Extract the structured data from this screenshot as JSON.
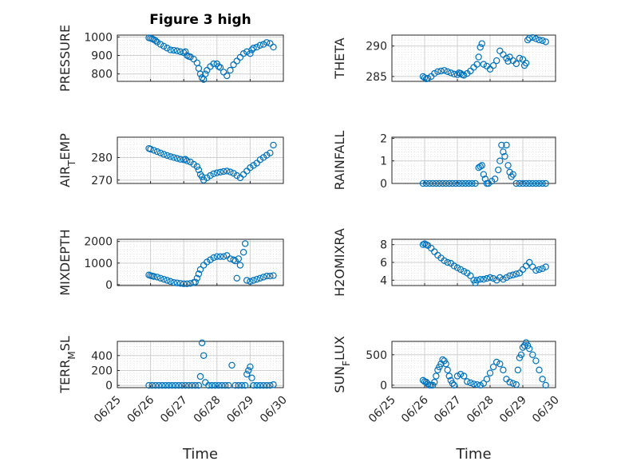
{
  "figure": {
    "title": "Figure 3 high",
    "marker_color": "#0072bd"
  },
  "chart_data": [
    {
      "type": "scatter",
      "ylabel": "PRESSURE",
      "ylim": [
        760,
        1010
      ],
      "yticks": [
        800,
        900,
        1000
      ],
      "x_label_shown": false,
      "x": [
        0.95,
        1.0,
        1.05,
        1.1,
        1.15,
        1.2,
        1.3,
        1.4,
        1.5,
        1.6,
        1.7,
        1.8,
        1.9,
        2.0,
        2.05,
        2.1,
        2.15,
        2.2,
        2.3,
        2.4,
        2.45,
        2.5,
        2.55,
        2.6,
        2.65,
        2.7,
        2.8,
        2.9,
        3.0,
        3.05,
        3.1,
        3.2,
        3.3,
        3.4,
        3.5,
        3.6,
        3.7,
        3.8,
        3.9,
        4.0,
        4.05,
        4.1,
        4.2,
        4.3,
        4.4,
        4.5,
        4.6,
        4.7
      ],
      "y": [
        995,
        993,
        990,
        985,
        980,
        972,
        960,
        950,
        940,
        930,
        928,
        925,
        920,
        915,
        920,
        900,
        895,
        892,
        880,
        860,
        830,
        800,
        780,
        770,
        800,
        820,
        840,
        855,
        855,
        840,
        835,
        810,
        790,
        820,
        850,
        870,
        890,
        910,
        920,
        910,
        930,
        940,
        945,
        955,
        960,
        970,
        965,
        945
      ]
    },
    {
      "type": "scatter",
      "ylabel": "THETA",
      "ylim": [
        284.2,
        291.8
      ],
      "yticks": [
        285,
        290
      ],
      "x_label_shown": false,
      "x": [
        0.95,
        1.0,
        1.05,
        1.1,
        1.2,
        1.3,
        1.4,
        1.5,
        1.6,
        1.7,
        1.8,
        1.9,
        2.0,
        2.05,
        2.1,
        2.15,
        2.2,
        2.3,
        2.4,
        2.5,
        2.6,
        2.65,
        2.7,
        2.75,
        2.8,
        2.9,
        3.0,
        3.1,
        3.2,
        3.3,
        3.4,
        3.5,
        3.55,
        3.6,
        3.7,
        3.8,
        3.9,
        4.0,
        4.05,
        4.1,
        4.15,
        4.2,
        4.3,
        4.4,
        4.5,
        4.6,
        4.7
      ],
      "y": [
        285.0,
        284.8,
        284.6,
        284.7,
        285.0,
        285.5,
        285.8,
        285.9,
        286.0,
        285.8,
        285.6,
        285.4,
        285.3,
        285.6,
        285.5,
        285.3,
        285.2,
        285.5,
        285.9,
        286.5,
        287.0,
        288.2,
        289.8,
        290.4,
        287.0,
        286.7,
        286.2,
        286.8,
        287.6,
        289.2,
        288.6,
        288.0,
        287.5,
        288.2,
        287.6,
        287.1,
        288.0,
        287.8,
        286.8,
        287.2,
        291.0,
        291.3,
        291.4,
        291.2,
        291.0,
        290.9,
        290.7
      ]
    },
    {
      "type": "scatter",
      "ylabel": "AIR_TEMP",
      "ylim": [
        268.5,
        289
      ],
      "yticks": [
        270,
        280
      ],
      "x_label_shown": false,
      "x": [
        0.95,
        1.0,
        1.1,
        1.2,
        1.3,
        1.4,
        1.5,
        1.6,
        1.7,
        1.8,
        1.9,
        2.0,
        2.05,
        2.1,
        2.2,
        2.3,
        2.4,
        2.45,
        2.5,
        2.55,
        2.6,
        2.7,
        2.8,
        2.9,
        3.0,
        3.1,
        3.2,
        3.3,
        3.4,
        3.5,
        3.6,
        3.7,
        3.8,
        3.9,
        4.0,
        4.1,
        4.2,
        4.3,
        4.4,
        4.5,
        4.6,
        4.7
      ],
      "y": [
        284.0,
        283.7,
        283.2,
        282.6,
        282.0,
        281.4,
        280.9,
        280.4,
        280.0,
        279.6,
        279.2,
        279.0,
        279.2,
        278.5,
        278.0,
        277.0,
        276.0,
        274.5,
        272.5,
        271.5,
        270.0,
        271.0,
        272.0,
        272.8,
        273.2,
        273.5,
        273.8,
        274.0,
        273.6,
        273.0,
        272.0,
        271.0,
        272.5,
        274.0,
        275.5,
        276.5,
        277.5,
        279.0,
        280.0,
        281.0,
        282.0,
        285.5
      ]
    },
    {
      "type": "scatter",
      "ylabel": "RAINFALL",
      "ylim": [
        0,
        2.05
      ],
      "yticks": [
        0,
        1,
        2
      ],
      "x_label_shown": false,
      "x": [
        0.95,
        1.05,
        1.15,
        1.25,
        1.35,
        1.45,
        1.55,
        1.65,
        1.75,
        1.85,
        1.95,
        2.05,
        2.15,
        2.25,
        2.35,
        2.45,
        2.55,
        2.65,
        2.7,
        2.75,
        2.8,
        2.85,
        2.9,
        2.95,
        3.05,
        3.15,
        3.25,
        3.3,
        3.35,
        3.4,
        3.45,
        3.5,
        3.55,
        3.6,
        3.65,
        3.7,
        3.8,
        3.9,
        4.0,
        4.1,
        4.2,
        4.3,
        4.4,
        4.5,
        4.6,
        4.7
      ],
      "y": [
        0,
        0,
        0,
        0,
        0,
        0,
        0,
        0,
        0,
        0,
        0,
        0,
        0,
        0,
        0,
        0,
        0,
        0.7,
        0.75,
        0.8,
        0.4,
        0.2,
        0,
        0,
        0.1,
        0.2,
        0.6,
        1.0,
        1.7,
        1.4,
        1.2,
        1.7,
        0.8,
        0.5,
        0.3,
        0.4,
        0,
        0,
        0,
        0,
        0,
        0,
        0,
        0,
        0,
        0
      ]
    },
    {
      "type": "scatter",
      "ylabel": "MIXDEPTH",
      "ylim": [
        -40,
        2100
      ],
      "yticks": [
        0,
        1000,
        2000
      ],
      "x_label_shown": false,
      "x": [
        0.95,
        1.0,
        1.05,
        1.1,
        1.2,
        1.3,
        1.4,
        1.5,
        1.6,
        1.7,
        1.8,
        1.9,
        2.0,
        2.1,
        2.2,
        2.3,
        2.35,
        2.4,
        2.45,
        2.5,
        2.6,
        2.7,
        2.8,
        2.9,
        3.0,
        3.1,
        3.2,
        3.3,
        3.4,
        3.5,
        3.55,
        3.6,
        3.65,
        3.7,
        3.8,
        3.85,
        3.9,
        4.0,
        4.1,
        4.2,
        4.3,
        4.4,
        4.5,
        4.6,
        4.7
      ],
      "y": [
        450,
        420,
        400,
        380,
        350,
        300,
        250,
        200,
        150,
        100,
        80,
        60,
        40,
        40,
        60,
        100,
        120,
        300,
        500,
        700,
        900,
        1050,
        1150,
        1250,
        1300,
        1300,
        1300,
        1350,
        1200,
        1150,
        1100,
        300,
        1200,
        900,
        1500,
        1900,
        200,
        150,
        200,
        250,
        300,
        350,
        400,
        400,
        420
      ]
    },
    {
      "type": "scatter",
      "ylabel": "H2OMIXRA",
      "ylim": [
        3.4,
        8.6
      ],
      "yticks": [
        4,
        6,
        8
      ],
      "x_label_shown": false,
      "x": [
        0.95,
        1.0,
        1.05,
        1.1,
        1.2,
        1.3,
        1.4,
        1.5,
        1.6,
        1.7,
        1.8,
        1.9,
        2.0,
        2.1,
        2.2,
        2.3,
        2.4,
        2.5,
        2.55,
        2.6,
        2.7,
        2.8,
        2.9,
        3.0,
        3.1,
        3.2,
        3.3,
        3.4,
        3.5,
        3.6,
        3.7,
        3.8,
        3.9,
        4.0,
        4.1,
        4.2,
        4.3,
        4.4,
        4.5,
        4.6,
        4.7
      ],
      "y": [
        8.0,
        8.1,
        8.0,
        7.9,
        7.6,
        7.2,
        6.8,
        6.5,
        6.2,
        6.0,
        5.9,
        5.6,
        5.4,
        5.2,
        5.0,
        4.8,
        4.5,
        4.0,
        3.7,
        4.0,
        4.1,
        4.1,
        4.2,
        4.3,
        4.2,
        4.0,
        4.3,
        4.1,
        4.3,
        4.5,
        4.6,
        4.7,
        4.8,
        5.2,
        5.6,
        6.0,
        5.5,
        5.1,
        5.2,
        5.3,
        5.5
      ]
    },
    {
      "type": "scatter",
      "ylabel": "TERR_MSL",
      "ylim": [
        -30,
        590
      ],
      "yticks": [
        0,
        200,
        400
      ],
      "x_label_shown": true,
      "xlabel": "Time",
      "xticks": [
        "06/25",
        "06/26",
        "06/27",
        "06/28",
        "06/29",
        "06/30"
      ],
      "x": [
        0.95,
        1.05,
        1.15,
        1.25,
        1.35,
        1.45,
        1.55,
        1.65,
        1.75,
        1.85,
        1.95,
        2.05,
        2.15,
        2.25,
        2.35,
        2.45,
        2.5,
        2.55,
        2.6,
        2.65,
        2.75,
        2.85,
        2.95,
        3.05,
        3.15,
        3.25,
        3.35,
        3.45,
        3.55,
        3.65,
        3.75,
        3.85,
        3.9,
        3.95,
        4.0,
        4.05,
        4.1,
        4.2,
        4.3,
        4.4,
        4.5,
        4.6,
        4.7
      ],
      "y": [
        0,
        0,
        0,
        0,
        0,
        0,
        0,
        0,
        0,
        0,
        0,
        0,
        0,
        0,
        0,
        0,
        120,
        570,
        400,
        40,
        0,
        0,
        0,
        0,
        0,
        0,
        0,
        270,
        0,
        0,
        0,
        0,
        150,
        200,
        250,
        100,
        0,
        0,
        0,
        0,
        0,
        0,
        10
      ]
    },
    {
      "type": "scatter",
      "ylabel": "SUN_FLUX",
      "ylim": [
        -40,
        720
      ],
      "yticks": [
        0,
        500
      ],
      "x_label_shown": true,
      "xlabel": "Time",
      "xticks": [
        "06/25",
        "06/26",
        "06/27",
        "06/28",
        "06/29",
        "06/30"
      ],
      "x": [
        0.95,
        1.0,
        1.05,
        1.1,
        1.15,
        1.2,
        1.25,
        1.3,
        1.35,
        1.4,
        1.45,
        1.5,
        1.55,
        1.6,
        1.65,
        1.7,
        1.75,
        1.8,
        1.85,
        1.9,
        2.0,
        2.1,
        2.2,
        2.3,
        2.4,
        2.5,
        2.6,
        2.7,
        2.8,
        2.9,
        3.0,
        3.1,
        3.2,
        3.3,
        3.4,
        3.5,
        3.6,
        3.7,
        3.8,
        3.85,
        3.9,
        3.95,
        4.0,
        4.05,
        4.1,
        4.15,
        4.2,
        4.3,
        4.4,
        4.5,
        4.6,
        4.7
      ],
      "y": [
        80,
        60,
        50,
        20,
        0,
        0,
        0,
        50,
        150,
        250,
        300,
        350,
        420,
        400,
        350,
        250,
        150,
        80,
        30,
        0,
        150,
        180,
        150,
        60,
        40,
        20,
        10,
        0,
        30,
        100,
        200,
        300,
        380,
        350,
        250,
        100,
        50,
        30,
        10,
        250,
        450,
        500,
        620,
        650,
        700,
        650,
        600,
        500,
        400,
        250,
        100,
        0
      ]
    }
  ]
}
